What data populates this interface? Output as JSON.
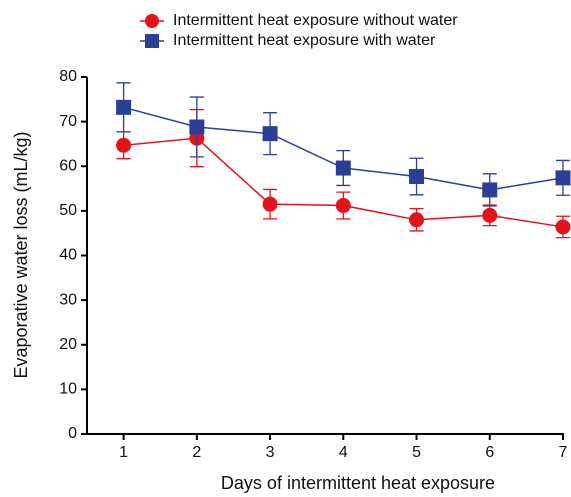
{
  "chart_data": {
    "type": "line",
    "x_label": "Days of intermittent heat exposure",
    "y_label": "Evaporative water loss (mL/kg)",
    "x": [
      1,
      2,
      3,
      4,
      5,
      6,
      7
    ],
    "xlim": [
      0.5,
      7
    ],
    "xticks": [
      1,
      2,
      3,
      4,
      5,
      6,
      7
    ],
    "ylim": [
      0,
      80
    ],
    "yticks": [
      0,
      10,
      20,
      30,
      40,
      50,
      60,
      70,
      80
    ],
    "series": [
      {
        "name": "Intermittent heat exposure without water",
        "color": "#e3131b",
        "marker": "circle",
        "values": [
          64.7,
          66.3,
          51.5,
          51.2,
          48.0,
          49.0,
          46.4
        ],
        "errors": [
          3.0,
          6.4,
          3.3,
          3.0,
          2.5,
          2.3,
          2.4
        ]
      },
      {
        "name": "Intermittent heat exposure with water",
        "color": "#2b3f97",
        "marker": "square",
        "values": [
          73.2,
          68.8,
          67.3,
          59.6,
          57.7,
          54.7,
          57.4
        ],
        "errors": [
          5.5,
          6.7,
          4.7,
          3.9,
          4.1,
          3.6,
          3.9
        ]
      }
    ]
  }
}
